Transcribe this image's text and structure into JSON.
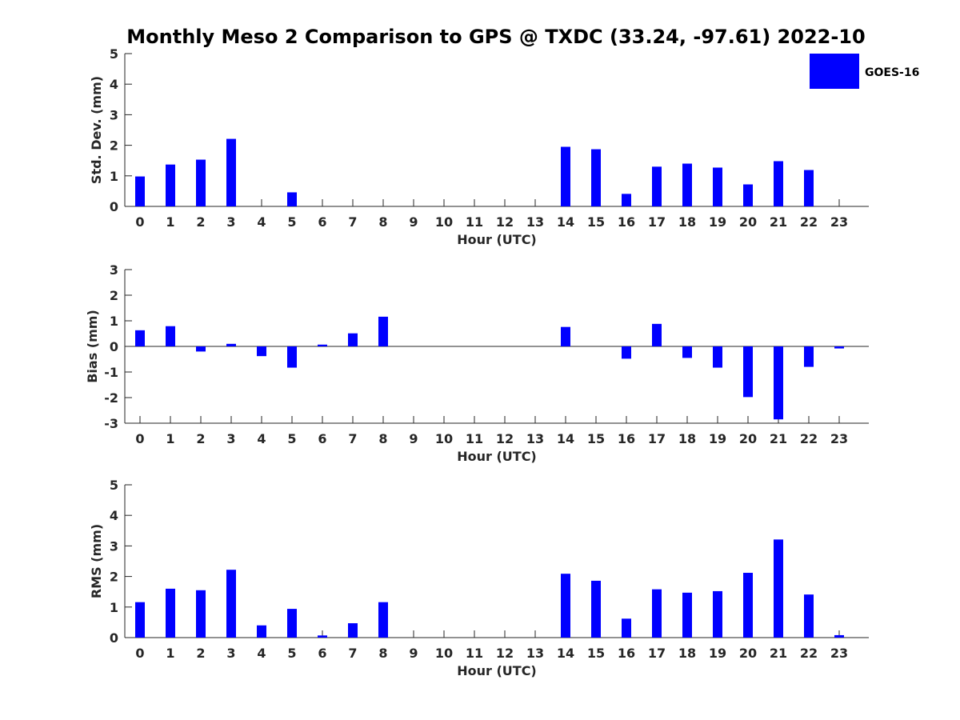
{
  "chart_data": [
    {
      "type": "bar",
      "title": "Monthly Meso 2 Comparison to GPS @ TXDC (33.24, -97.61) 2022-10",
      "xlabel": "Hour (UTC)",
      "ylabel": "Std. Dev. (mm)",
      "ylim": [
        0,
        5
      ],
      "yticks": [
        "0",
        "1",
        "2",
        "3",
        "4",
        "5"
      ],
      "categories": [
        "0",
        "1",
        "2",
        "3",
        "4",
        "5",
        "6",
        "7",
        "8",
        "9",
        "10",
        "11",
        "12",
        "13",
        "14",
        "15",
        "16",
        "17",
        "18",
        "19",
        "20",
        "21",
        "22",
        "23"
      ],
      "series": [
        {
          "name": "GOES-16",
          "color": "#0000ff",
          "values": [
            0.98,
            1.37,
            1.53,
            2.21,
            null,
            0.46,
            null,
            null,
            null,
            null,
            null,
            null,
            null,
            null,
            1.95,
            1.87,
            0.41,
            1.3,
            1.4,
            1.27,
            0.72,
            1.48,
            1.19,
            null
          ]
        }
      ],
      "legend": "top-right",
      "grid": false
    },
    {
      "type": "bar",
      "xlabel": "Hour (UTC)",
      "ylabel": "Bias (mm)",
      "ylim": [
        -3,
        3
      ],
      "yticks": [
        "-3",
        "-2",
        "-1",
        "0",
        "1",
        "2",
        "3"
      ],
      "categories": [
        "0",
        "1",
        "2",
        "3",
        "4",
        "5",
        "6",
        "7",
        "8",
        "9",
        "10",
        "11",
        "12",
        "13",
        "14",
        "15",
        "16",
        "17",
        "18",
        "19",
        "20",
        "21",
        "22",
        "23"
      ],
      "series": [
        {
          "name": "GOES-16",
          "color": "#0000ff",
          "values": [
            0.63,
            0.79,
            -0.2,
            0.1,
            -0.38,
            -0.83,
            0.07,
            0.51,
            1.16,
            null,
            null,
            null,
            null,
            null,
            0.76,
            null,
            -0.48,
            0.88,
            -0.45,
            -0.83,
            -1.98,
            -2.85,
            -0.8,
            -0.08
          ]
        }
      ],
      "grid": false
    },
    {
      "type": "bar",
      "xlabel": "Hour (UTC)",
      "ylabel": "RMS (mm)",
      "ylim": [
        0,
        5
      ],
      "yticks": [
        "0",
        "1",
        "2",
        "3",
        "4",
        "5"
      ],
      "categories": [
        "0",
        "1",
        "2",
        "3",
        "4",
        "5",
        "6",
        "7",
        "8",
        "9",
        "10",
        "11",
        "12",
        "13",
        "14",
        "15",
        "16",
        "17",
        "18",
        "19",
        "20",
        "21",
        "22",
        "23"
      ],
      "series": [
        {
          "name": "GOES-16",
          "color": "#0000ff",
          "values": [
            1.16,
            1.6,
            1.55,
            2.22,
            0.4,
            0.94,
            0.07,
            0.47,
            1.16,
            null,
            null,
            null,
            null,
            null,
            2.09,
            1.86,
            0.62,
            1.58,
            1.47,
            1.52,
            2.12,
            3.21,
            1.41,
            0.08
          ]
        }
      ],
      "grid": false
    }
  ]
}
